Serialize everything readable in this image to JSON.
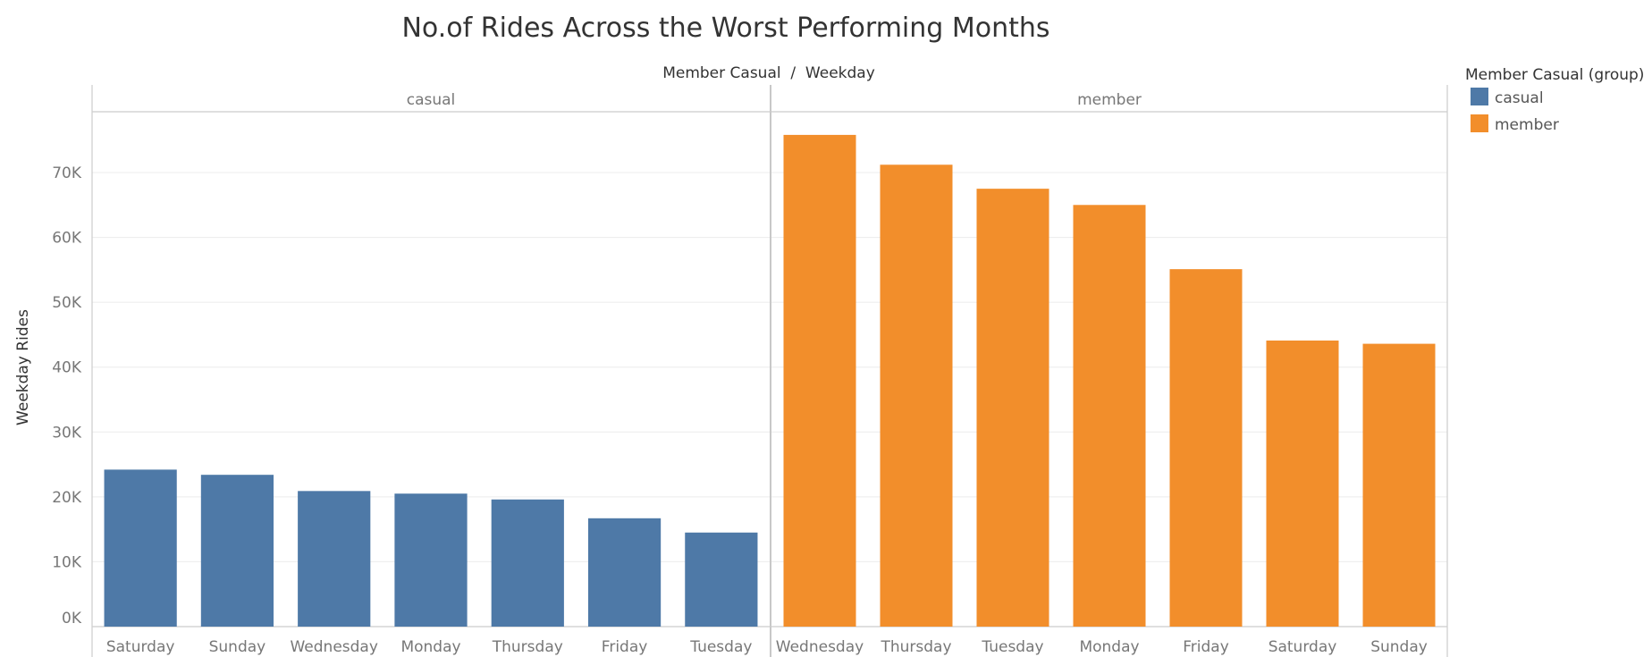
{
  "chart_data": {
    "type": "bar",
    "title": "No.of Rides Across the Worst Performing Months",
    "column_header": "Member Casual  /  Weekday",
    "ylabel": "Weekday Rides",
    "ylim": [
      0,
      80000
    ],
    "yticks": [
      {
        "value": 0,
        "label": "0K"
      },
      {
        "value": 10000,
        "label": "10K"
      },
      {
        "value": 20000,
        "label": "20K"
      },
      {
        "value": 30000,
        "label": "30K"
      },
      {
        "value": 40000,
        "label": "40K"
      },
      {
        "value": 50000,
        "label": "50K"
      },
      {
        "value": 60000,
        "label": "60K"
      },
      {
        "value": 70000,
        "label": "70K"
      }
    ],
    "grid": true,
    "legend": {
      "title": "Member Casual (group)",
      "placement": "top-right",
      "items": [
        {
          "label": "casual",
          "color": "#4e79a7"
        },
        {
          "label": "member",
          "color": "#f28e2b"
        }
      ]
    },
    "panels": [
      {
        "label": "casual",
        "color": "#4e79a7",
        "categories": [
          "Saturday",
          "Sunday",
          "Wednesday",
          "Monday",
          "Thursday",
          "Friday",
          "Tuesday"
        ],
        "values": [
          24200,
          23400,
          20900,
          20500,
          19600,
          16700,
          14500
        ]
      },
      {
        "label": "member",
        "color": "#f28e2b",
        "categories": [
          "Wednesday",
          "Thursday",
          "Tuesday",
          "Monday",
          "Friday",
          "Saturday",
          "Sunday"
        ],
        "values": [
          75800,
          71200,
          67500,
          65000,
          55100,
          44100,
          43600
        ]
      }
    ]
  }
}
